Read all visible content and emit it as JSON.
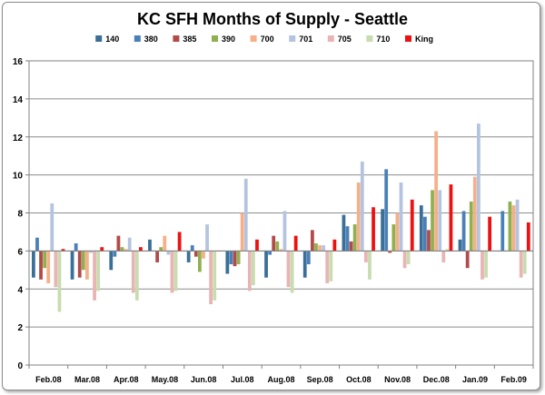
{
  "chart_data": {
    "type": "bar",
    "title": "KC SFH Months of Supply - Seattle",
    "xlabel": "",
    "ylabel": "",
    "ylim": [
      0,
      16
    ],
    "ybase": 6,
    "yticks": [
      0,
      2,
      4,
      6,
      8,
      10,
      12,
      14,
      16
    ],
    "grid": true,
    "legend": "top",
    "categories": [
      "Feb.08",
      "Mar.08",
      "Apr.08",
      "May.08",
      "Jun.08",
      "Jul.08",
      "Aug.08",
      "Sep.08",
      "Oct.08",
      "Nov.08",
      "Dec.08",
      "Jan.09",
      "Feb.09"
    ],
    "series": [
      {
        "name": "140",
        "color": "#3a6f98",
        "values": [
          4.6,
          4.5,
          5.0,
          6.6,
          5.4,
          4.8,
          4.6,
          4.6,
          7.9,
          8.2,
          8.4,
          6.6,
          6.0
        ]
      },
      {
        "name": "380",
        "color": "#4a80b8",
        "values": [
          6.7,
          6.4,
          5.7,
          6.0,
          6.3,
          5.3,
          5.8,
          5.3,
          7.3,
          10.3,
          7.8,
          8.1,
          8.1
        ]
      },
      {
        "name": "385",
        "color": "#b34a4a",
        "values": [
          4.5,
          4.6,
          6.8,
          5.4,
          5.7,
          5.2,
          6.8,
          7.1,
          6.5,
          5.9,
          7.1,
          5.1,
          6.0
        ]
      },
      {
        "name": "390",
        "color": "#90b050",
        "values": [
          5.1,
          5.0,
          6.2,
          6.2,
          4.9,
          5.3,
          6.5,
          6.4,
          7.4,
          7.4,
          9.2,
          8.6,
          8.6
        ]
      },
      {
        "name": "700",
        "color": "#f5b088",
        "values": [
          4.3,
          4.5,
          6.1,
          6.8,
          5.6,
          8.0,
          6.1,
          6.3,
          9.6,
          8.0,
          12.3,
          9.9,
          8.4
        ]
      },
      {
        "name": "701",
        "color": "#b4c4e0",
        "values": [
          8.5,
          5.9,
          6.7,
          5.8,
          7.4,
          9.8,
          8.1,
          6.3,
          10.7,
          9.6,
          9.2,
          12.7,
          8.7
        ]
      },
      {
        "name": "705",
        "color": "#e8b4b4",
        "values": [
          4.1,
          3.4,
          3.8,
          3.8,
          3.2,
          3.9,
          4.1,
          4.3,
          5.4,
          5.1,
          5.4,
          4.5,
          4.6
        ]
      },
      {
        "name": "710",
        "color": "#c8dcb0",
        "values": [
          2.8,
          3.9,
          3.4,
          3.9,
          3.4,
          4.2,
          3.8,
          4.4,
          4.5,
          5.3,
          6.1,
          4.6,
          4.8
        ]
      },
      {
        "name": "King",
        "color": "#ee1111",
        "values": [
          6.1,
          6.2,
          6.2,
          7.0,
          6.0,
          6.6,
          6.8,
          6.6,
          8.3,
          8.7,
          9.5,
          7.8,
          7.5
        ]
      }
    ]
  }
}
